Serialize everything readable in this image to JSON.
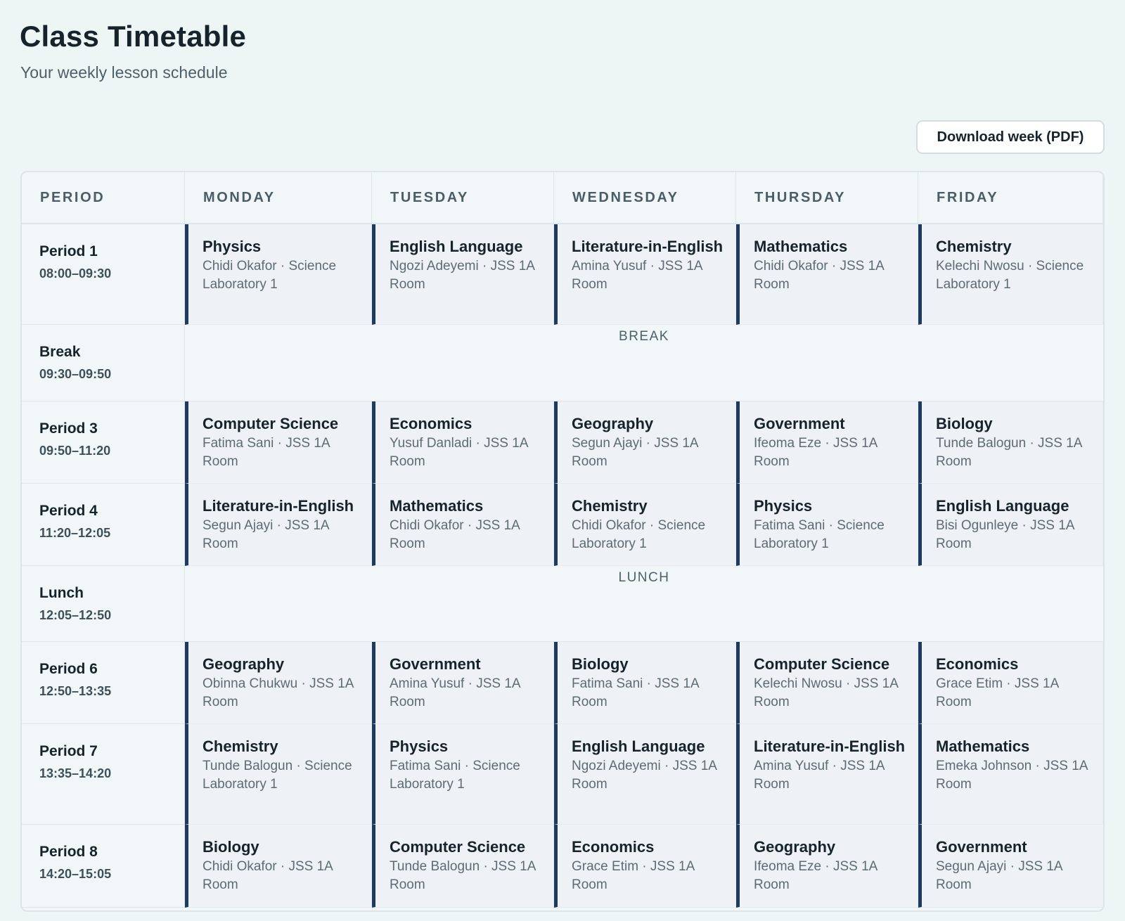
{
  "header": {
    "title": "Class Timetable",
    "subtitle": "Your weekly lesson schedule",
    "download_label": "Download week (PDF)"
  },
  "table": {
    "columns": [
      "PERIOD",
      "MONDAY",
      "TUESDAY",
      "WEDNESDAY",
      "THURSDAY",
      "FRIDAY"
    ],
    "rows": [
      {
        "name": "Period 1",
        "time": "08:00–09:30",
        "lessons": [
          {
            "subject": "Physics",
            "meta": "Chidi Okafor · Science Laboratory 1"
          },
          {
            "subject": "English Language",
            "meta": "Ngozi Adeyemi · JSS 1A Room"
          },
          {
            "subject": "Literature-in-English",
            "meta": "Amina Yusuf · JSS 1A Room"
          },
          {
            "subject": "Mathematics",
            "meta": "Chidi Okafor · JSS 1A Room"
          },
          {
            "subject": "Chemistry",
            "meta": "Kelechi Nwosu · Science Laboratory 1"
          }
        ]
      },
      {
        "name": "Break",
        "time": "09:30–09:50",
        "label": "BREAK"
      },
      {
        "name": "Period 3",
        "time": "09:50–11:20",
        "lessons": [
          {
            "subject": "Computer Science",
            "meta": "Fatima Sani · JSS 1A Room"
          },
          {
            "subject": "Economics",
            "meta": "Yusuf Danladi · JSS 1A Room"
          },
          {
            "subject": "Geography",
            "meta": "Segun Ajayi · JSS 1A Room"
          },
          {
            "subject": "Government",
            "meta": "Ifeoma Eze · JSS 1A Room"
          },
          {
            "subject": "Biology",
            "meta": "Tunde Balogun · JSS 1A Room"
          }
        ]
      },
      {
        "name": "Period 4",
        "time": "11:20–12:05",
        "lessons": [
          {
            "subject": "Literature-in-English",
            "meta": "Segun Ajayi · JSS 1A Room"
          },
          {
            "subject": "Mathematics",
            "meta": "Chidi Okafor · JSS 1A Room"
          },
          {
            "subject": "Chemistry",
            "meta": "Chidi Okafor · Science Laboratory 1"
          },
          {
            "subject": "Physics",
            "meta": "Fatima Sani · Science Laboratory 1"
          },
          {
            "subject": "English Language",
            "meta": "Bisi Ogunleye · JSS 1A Room"
          }
        ]
      },
      {
        "name": "Lunch",
        "time": "12:05–12:50",
        "label": "LUNCH"
      },
      {
        "name": "Period 6",
        "time": "12:50–13:35",
        "lessons": [
          {
            "subject": "Geography",
            "meta": "Obinna Chukwu · JSS 1A Room"
          },
          {
            "subject": "Government",
            "meta": "Amina Yusuf · JSS 1A Room"
          },
          {
            "subject": "Biology",
            "meta": "Fatima Sani · JSS 1A Room"
          },
          {
            "subject": "Computer Science",
            "meta": "Kelechi Nwosu · JSS 1A Room"
          },
          {
            "subject": "Economics",
            "meta": "Grace Etim · JSS 1A Room"
          }
        ]
      },
      {
        "name": "Period 7",
        "time": "13:35–14:20",
        "lessons": [
          {
            "subject": "Chemistry",
            "meta": "Tunde Balogun · Science Laboratory 1"
          },
          {
            "subject": "Physics",
            "meta": "Fatima Sani · Science Laboratory 1"
          },
          {
            "subject": "English Language",
            "meta": "Ngozi Adeyemi · JSS 1A Room"
          },
          {
            "subject": "Literature-in-English",
            "meta": "Amina Yusuf · JSS 1A Room"
          },
          {
            "subject": "Mathematics",
            "meta": "Emeka Johnson · JSS 1A Room"
          }
        ]
      },
      {
        "name": "Period 8",
        "time": "14:20–15:05",
        "lessons": [
          {
            "subject": "Biology",
            "meta": "Chidi Okafor · JSS 1A Room"
          },
          {
            "subject": "Computer Science",
            "meta": "Tunde Balogun · JSS 1A Room"
          },
          {
            "subject": "Economics",
            "meta": "Grace Etim · JSS 1A Room"
          },
          {
            "subject": "Geography",
            "meta": "Ifeoma Eze · JSS 1A Room"
          },
          {
            "subject": "Government",
            "meta": "Segun Ajayi · JSS 1A Room"
          }
        ]
      }
    ]
  },
  "colors": {
    "page_background": "#eef5f5",
    "lesson_accent": "#1f3a5f",
    "lesson_background": "#eef1f5"
  }
}
